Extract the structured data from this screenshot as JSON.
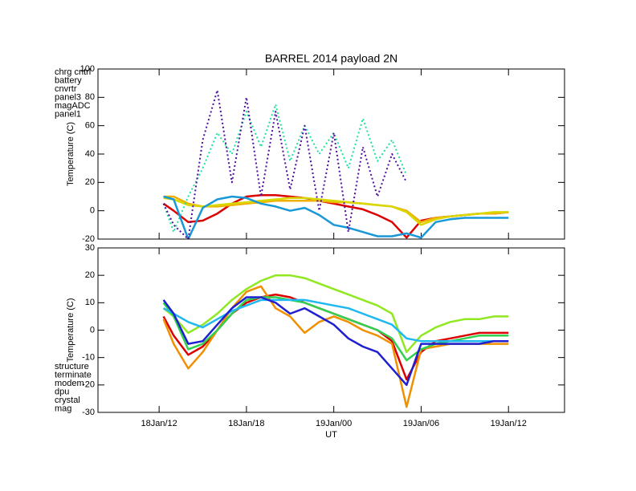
{
  "chart_data": [
    {
      "type": "line",
      "title": "BARREL 2014 payload 2N",
      "y_label": "Temperature (C)",
      "x": [
        12.3,
        13,
        14,
        15,
        16,
        17,
        18,
        19,
        20,
        21,
        22,
        23,
        24,
        25,
        26,
        27,
        28,
        29,
        30,
        31,
        32,
        33,
        34,
        35,
        36
      ],
      "xlim": [
        7.8,
        39.85
      ],
      "ylim": [
        -20,
        100
      ],
      "yticks": [
        -20,
        0,
        20,
        40,
        60,
        80,
        100
      ],
      "series": [
        {
          "name": "chrg cntrl",
          "color": "#dd0000",
          "values": [
            5,
            0,
            -8,
            -7,
            -2,
            5,
            10,
            11,
            11,
            10,
            9,
            7,
            5,
            3,
            1,
            -3,
            -8,
            -19,
            -7,
            -5,
            -4,
            -3,
            -2,
            -2,
            -1
          ]
        },
        {
          "name": "battery",
          "color": "#f0b000",
          "values": [
            10,
            10,
            5,
            3,
            3,
            4,
            5,
            6,
            7,
            7,
            7,
            7,
            6,
            6,
            5,
            4,
            3,
            0,
            -8,
            -5,
            -4,
            -3,
            -2,
            -2,
            -1
          ]
        },
        {
          "name": "cnvrtr",
          "color": "#d8d800",
          "values": [
            9,
            8,
            4,
            3,
            4,
            5,
            6,
            7,
            8,
            9,
            9,
            8,
            7,
            6,
            5,
            4,
            3,
            -1,
            -10,
            -6,
            -4,
            -3,
            -2,
            -1,
            -1
          ]
        },
        {
          "name": "panel3",
          "color": "#20e0a0",
          "style": "dotted",
          "values": [
            5,
            -15,
            10,
            30,
            55,
            40,
            70,
            45,
            75,
            35,
            60,
            40,
            55,
            30,
            65,
            35,
            50,
            25,
            null,
            null,
            null,
            null,
            null,
            null,
            null
          ]
        },
        {
          "name": "magADC",
          "color": "#1898d8",
          "values": [
            10,
            8,
            -20,
            2,
            8,
            10,
            9,
            5,
            3,
            0,
            2,
            -3,
            -10,
            -12,
            -15,
            -18,
            -18,
            -16,
            -19,
            -8,
            -6,
            -5,
            -5,
            -5,
            -5
          ]
        },
        {
          "name": "panel1",
          "color": "#5010a0",
          "style": "dotted",
          "values": [
            5,
            -10,
            -20,
            50,
            85,
            20,
            80,
            10,
            70,
            15,
            60,
            0,
            55,
            -15,
            45,
            10,
            40,
            20,
            null,
            null,
            null,
            null,
            null,
            null,
            null
          ]
        }
      ]
    },
    {
      "type": "line",
      "y_label": "Temperature (C)",
      "x_label": "UT",
      "x": [
        12.3,
        13,
        14,
        15,
        16,
        17,
        18,
        19,
        20,
        21,
        22,
        23,
        24,
        25,
        26,
        27,
        28,
        29,
        30,
        31,
        32,
        33,
        34,
        35,
        36
      ],
      "xlim": [
        7.8,
        39.85
      ],
      "ylim": [
        -30,
        30
      ],
      "yticks": [
        -30,
        -20,
        -10,
        0,
        10,
        20,
        30
      ],
      "xticks": [
        {
          "value": 12,
          "label": "18Jan/12"
        },
        {
          "value": 18,
          "label": "18Jan/18"
        },
        {
          "value": 24,
          "label": "19Jan/00"
        },
        {
          "value": 30,
          "label": "19Jan/06"
        },
        {
          "value": 36,
          "label": "19Jan/12"
        }
      ],
      "series": [
        {
          "name": "structure",
          "color": "#dd0000",
          "values": [
            5,
            -2,
            -9,
            -6,
            0,
            6,
            10,
            12,
            13,
            12,
            10,
            8,
            6,
            4,
            2,
            0,
            -4,
            -18,
            -8,
            -4,
            -3,
            -2,
            -1,
            -1,
            -1
          ]
        },
        {
          "name": "terminate",
          "color": "#f09000",
          "values": [
            4,
            -5,
            -14,
            -8,
            0,
            8,
            14,
            16,
            8,
            5,
            -1,
            3,
            5,
            3,
            0,
            -2,
            -5,
            -28,
            -7,
            -6,
            -5,
            -5,
            -5,
            -5,
            -5
          ]
        },
        {
          "name": "modem",
          "color": "#90e820",
          "values": [
            8,
            5,
            -1,
            2,
            6,
            11,
            15,
            18,
            20,
            20,
            19,
            17,
            15,
            13,
            11,
            9,
            6,
            -8,
            -2,
            1,
            3,
            4,
            4,
            5,
            5
          ]
        },
        {
          "name": "dpu",
          "color": "#30d050",
          "values": [
            10,
            5,
            -7,
            -5,
            0,
            6,
            11,
            12,
            12,
            11,
            10,
            8,
            6,
            4,
            2,
            0,
            -3,
            -11,
            -7,
            -5,
            -4,
            -3,
            -2,
            -2,
            -2
          ]
        },
        {
          "name": "crystal",
          "color": "#20b8f0",
          "values": [
            8,
            6,
            3,
            1,
            4,
            7,
            9,
            11,
            11,
            11,
            11,
            10,
            9,
            8,
            6,
            4,
            2,
            -3,
            -4,
            -4,
            -4,
            -4,
            -4,
            -4,
            -4
          ]
        },
        {
          "name": "mag",
          "color": "#2020d0",
          "values": [
            11,
            6,
            -5,
            -4,
            2,
            8,
            12,
            12,
            10,
            6,
            8,
            5,
            2,
            -3,
            -6,
            -8,
            -14,
            -20,
            -5,
            -5,
            -5,
            -5,
            -5,
            -4,
            -4
          ]
        }
      ]
    }
  ]
}
